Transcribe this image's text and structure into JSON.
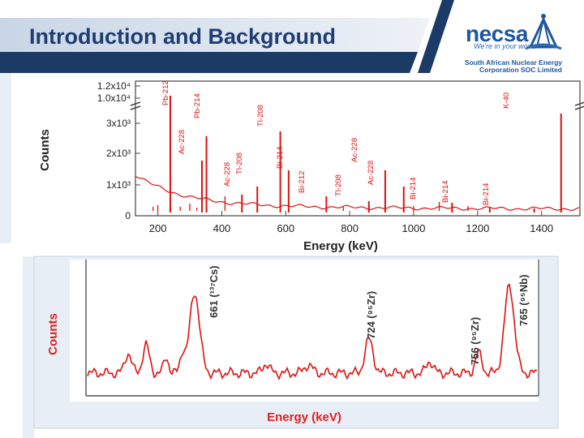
{
  "slide": {
    "title": "Introduction and Background"
  },
  "logo": {
    "wordmark": "necsa",
    "tagline": "We're in your world",
    "org_line1": "South African Nuclear Energy",
    "org_line2": "Corporation SOC Limited",
    "colors": {
      "blue": "#1e56a0",
      "light_blue": "#2b6bb3"
    }
  },
  "colors": {
    "spectrum": "#e01010",
    "title": "#1f3d73",
    "panel_bg": "#e8eef6",
    "lower_counts_label": "#e02020"
  },
  "chart_data": [
    {
      "type": "line",
      "ylabel": "Counts",
      "xlabel": "Energy (keV)",
      "xlim": [
        130,
        1520
      ],
      "x_ticks": [
        "200",
        "400",
        "600",
        "800",
        "1000",
        "1200",
        "1400"
      ],
      "x_tick_values": [
        200,
        400,
        600,
        800,
        1000,
        1200,
        1400
      ],
      "y_ticks": [
        "0",
        "1x10³",
        "2x10³",
        "3x10³",
        "1.0x10⁴",
        "1.2x10⁴"
      ],
      "y_axis_break": true,
      "peaks": [
        {
          "label": "Pb-212",
          "energy": 239
        },
        {
          "label": "Pb-214",
          "energy": 352
        },
        {
          "label": "Ac-228",
          "energy": 338
        },
        {
          "label": "Ac-228",
          "energy": 463
        },
        {
          "label": "Tl-208",
          "energy": 511
        },
        {
          "label": "Tl-208",
          "energy": 583
        },
        {
          "label": "Bi-214",
          "energy": 609
        },
        {
          "label": "Bi-212",
          "energy": 727
        },
        {
          "label": "Tl-208",
          "energy": 860
        },
        {
          "label": "Ac-228",
          "energy": 911
        },
        {
          "label": "Ac-228",
          "energy": 969
        },
        {
          "label": "Bi-214",
          "energy": 1120
        },
        {
          "label": "Bi-214",
          "energy": 1238
        },
        {
          "label": "Bi-214",
          "energy": 1377
        },
        {
          "label": "K-40",
          "energy": 1461
        }
      ]
    },
    {
      "type": "line",
      "ylabel": "Counts",
      "xlabel": "Energy (keV)",
      "peaks": [
        {
          "label": "661 (¹³⁷Cs)",
          "energy": 661
        },
        {
          "label": "724 (⁹⁵Zr)",
          "energy": 724
        },
        {
          "label": "756 (⁹⁵Zr)",
          "energy": 756
        },
        {
          "label": "765 (⁹⁵Nb)",
          "energy": 765
        }
      ]
    }
  ]
}
